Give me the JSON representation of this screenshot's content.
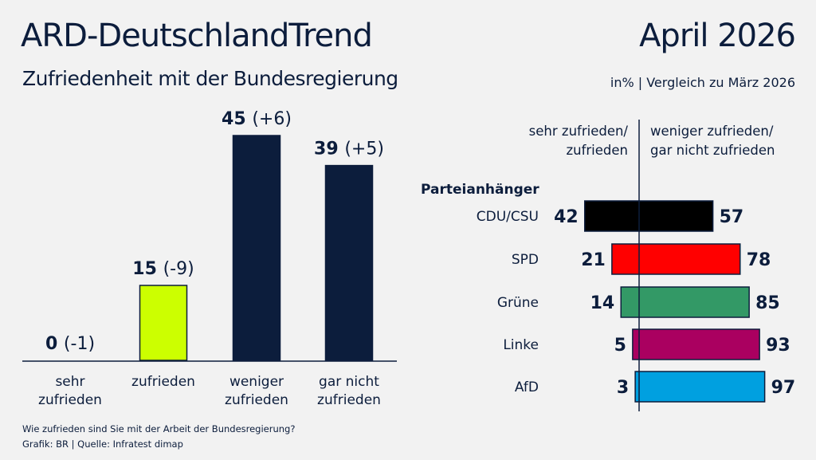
{
  "header": {
    "title": "ARD-DeutschlandTrend",
    "subtitle": "Zufriedenheit mit der Bundesregierung",
    "date": "April 2026",
    "unit_note": "in% | Vergleich zu März 2026"
  },
  "footer": {
    "question": "Wie zufrieden sind Sie mit der Arbeit der Bundesregierung?",
    "source": "Grafik: BR | Quelle: Infratest dimap"
  },
  "chart_data": [
    {
      "type": "bar",
      "categories": [
        [
          "sehr",
          "zufrieden"
        ],
        [
          "zufrieden"
        ],
        [
          "weniger",
          "zufrieden"
        ],
        [
          "gar nicht",
          "zufrieden"
        ]
      ],
      "values": [
        0,
        15,
        45,
        39
      ],
      "changes": [
        "(-1)",
        "(-9)",
        "(+6)",
        "(+5)"
      ],
      "colors": [
        "#0c1d3c",
        "#ccff00",
        "#0c1d3c",
        "#0c1d3c"
      ],
      "ylim": [
        0,
        50
      ]
    },
    {
      "type": "bar",
      "orientation": "diverging-horizontal",
      "group_label": "Parteianhänger",
      "left_header": [
        "sehr zufrieden/",
        "zufrieden"
      ],
      "right_header": [
        "weniger zufrieden/",
        "gar nicht zufrieden"
      ],
      "categories": [
        "CDU/CSU",
        "SPD",
        "Grüne",
        "Linke",
        "AfD"
      ],
      "series": [
        {
          "name": "sehr zufrieden/zufrieden",
          "values": [
            42,
            21,
            14,
            5,
            3
          ]
        },
        {
          "name": "weniger zufrieden/gar nicht zufrieden",
          "values": [
            57,
            78,
            85,
            93,
            97
          ]
        }
      ],
      "colors": [
        "#000000",
        "#ff0000",
        "#339966",
        "#aa0060",
        "#00a0e0"
      ]
    }
  ]
}
